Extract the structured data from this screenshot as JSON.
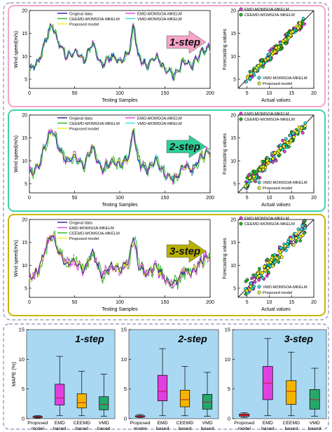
{
  "colors": {
    "original": "#1f1f9e",
    "emd": "#e040e0",
    "ceemd": "#26b826",
    "vmd": "#33e0e0",
    "proposed": "#f0f020",
    "frame_step1": "#f4a6c8",
    "frame_step2": "#3fd4a6",
    "frame_step3": "#c8b400",
    "arrow_step1": "#f5a3c7",
    "arrow_step2": "#2ecf9a",
    "arrow_step3": "#b8b000",
    "box_bg": "#a9d8f2",
    "outer_dash": "#8c8cb4"
  },
  "panels": [
    {
      "step_label": "1-step",
      "series_legend": [
        "Original data",
        "EMD-MOMSOA-MKELM",
        "CEEMD-MOMSOA-MKELM",
        "VMD-MOMSOA-MKELM",
        "Proposed model"
      ],
      "scatter_legend_top": [
        "EMD-MOMSOA-MKELM",
        "CEEMD-MOMSOA-MKELM"
      ],
      "scatter_legend_bottom": [
        "VMD-MOMSOA-MKELM",
        "Proposed model"
      ]
    },
    {
      "step_label": "2-step",
      "series_legend": [
        "Original data",
        "EMD-MOMSOA-MKELM",
        "CEEMD-MOMSOA-MKELM",
        "VMD-MOMSOA-MKELM",
        "Proposed model"
      ],
      "scatter_legend_top": [
        "EMD-MOMSOA-MKELM",
        "CEEMD-MOMSOA-MKELM"
      ],
      "scatter_legend_bottom": [
        "VMD-MOMSOA-MKELM",
        "Proposed model"
      ]
    },
    {
      "step_label": "3-step",
      "series_legend": [
        "Original data",
        "EMD-MOMSOA-MKELM",
        "CEEMD-MOMSOA-MKELM",
        "Proposed model"
      ],
      "scatter_legend_top": [
        "EMD-MOMSOA-MKELM",
        "CEEMD-MOMSOA-MKELM"
      ],
      "scatter_legend_bottom": [
        "VMD-MOMSOA-MKELM",
        "Proposed model"
      ]
    }
  ],
  "chart_data": [
    {
      "type": "line",
      "step": "1-step",
      "xlabel": "Testing Samples",
      "ylabel": "Wind speed(m/s)",
      "xlim": [
        0,
        200
      ],
      "ylim": [
        3,
        20
      ],
      "xticks": [
        0,
        50,
        100,
        150,
        200
      ],
      "yticks": [
        5,
        10,
        15,
        20
      ],
      "x": [
        0,
        10,
        20,
        25,
        30,
        40,
        50,
        60,
        70,
        75,
        80,
        90,
        100,
        110,
        115,
        120,
        130,
        140,
        150,
        160,
        165,
        170,
        180,
        190,
        200
      ],
      "series": [
        {
          "name": "Original data",
          "values": [
            7,
            9,
            15,
            17,
            14,
            10,
            11,
            9,
            13,
            10,
            8,
            10,
            9,
            11,
            17,
            10,
            8,
            10,
            7,
            6,
            7,
            9,
            8,
            11,
            12
          ]
        }
      ]
    },
    {
      "type": "scatter",
      "step": "1-step",
      "xlabel": "Actual values",
      "ylabel": "Forecasting values",
      "xlim": [
        3,
        20
      ],
      "ylim": [
        3,
        20
      ],
      "xticks": [
        5,
        10,
        15,
        20
      ],
      "yticks": [
        5,
        10,
        15,
        20
      ]
    },
    {
      "type": "line",
      "step": "2-step",
      "xlabel": "Testing Samples",
      "ylabel": "Wind speed(m/s)",
      "xlim": [
        0,
        200
      ],
      "ylim": [
        3,
        20
      ],
      "xticks": [
        0,
        50,
        100,
        150,
        200
      ],
      "yticks": [
        5,
        10,
        15,
        20
      ],
      "x": [
        0,
        10,
        20,
        25,
        30,
        40,
        50,
        60,
        70,
        75,
        80,
        90,
        100,
        110,
        115,
        120,
        130,
        140,
        150,
        160,
        165,
        170,
        180,
        190,
        200
      ],
      "series": [
        {
          "name": "Original data",
          "values": [
            7,
            9,
            15,
            17,
            14,
            10,
            11,
            9,
            13,
            10,
            8,
            10,
            9,
            11,
            17,
            10,
            8,
            10,
            7,
            6,
            7,
            9,
            8,
            11,
            12
          ]
        }
      ]
    },
    {
      "type": "scatter",
      "step": "2-step",
      "xlabel": "Actual values",
      "ylabel": "Forecasting values",
      "xlim": [
        3,
        20
      ],
      "ylim": [
        3,
        20
      ],
      "xticks": [
        5,
        10,
        15,
        20
      ],
      "yticks": [
        5,
        10,
        15,
        20
      ]
    },
    {
      "type": "line",
      "step": "3-step",
      "xlabel": "Testing Samples",
      "ylabel": "Wind speed(m/s)",
      "xlim": [
        0,
        200
      ],
      "ylim": [
        3,
        20
      ],
      "xticks": [
        0,
        50,
        100,
        150,
        200
      ],
      "yticks": [
        5,
        10,
        15,
        20
      ],
      "x": [
        0,
        10,
        20,
        25,
        30,
        40,
        50,
        60,
        70,
        75,
        80,
        90,
        100,
        110,
        115,
        120,
        130,
        140,
        150,
        160,
        165,
        170,
        180,
        190,
        200
      ],
      "series": [
        {
          "name": "Original data",
          "values": [
            7,
            9,
            15,
            17,
            14,
            10,
            11,
            9,
            13,
            10,
            8,
            10,
            9,
            11,
            17,
            10,
            8,
            10,
            7,
            6,
            7,
            9,
            8,
            11,
            12
          ]
        }
      ]
    },
    {
      "type": "scatter",
      "step": "3-step",
      "xlabel": "Actual values",
      "ylabel": "Forecasting values",
      "xlim": [
        3,
        20
      ],
      "ylim": [
        3,
        20
      ],
      "xticks": [
        5,
        10,
        15,
        20
      ],
      "yticks": [
        5,
        10,
        15,
        20
      ]
    },
    {
      "type": "box",
      "step": "1-step",
      "ylabel": "MAPE (%)",
      "ylim": [
        0,
        15
      ],
      "yticks": [
        0,
        5,
        10,
        15
      ],
      "categories": [
        "Proposed model",
        "EMD based",
        "CEEMD based",
        "VMD based"
      ],
      "boxes": [
        {
          "min": 0.1,
          "q1": 0.2,
          "median": 0.3,
          "q3": 0.4,
          "max": 0.5,
          "color": "#e0303a"
        },
        {
          "min": 0.5,
          "q1": 2.3,
          "median": 3.5,
          "q3": 5.8,
          "max": 10.5,
          "color": "#e040e0"
        },
        {
          "min": 0.5,
          "q1": 1.8,
          "median": 2.7,
          "q3": 4.2,
          "max": 8.0,
          "color": "#f5b400"
        },
        {
          "min": 0.4,
          "q1": 1.5,
          "median": 2.4,
          "q3": 3.7,
          "max": 7.5,
          "color": "#26a86a"
        }
      ]
    },
    {
      "type": "box",
      "step": "2-step",
      "ylabel": "MAPE (%)",
      "ylim": [
        0,
        15
      ],
      "yticks": [
        0,
        5,
        10,
        15
      ],
      "categories": [
        "Proposed model",
        "EMD based",
        "CEEMD based",
        "VMD based"
      ],
      "boxes": [
        {
          "min": 0.2,
          "q1": 0.3,
          "median": 0.4,
          "q3": 0.5,
          "max": 0.7,
          "color": "#e0303a"
        },
        {
          "min": 0.5,
          "q1": 3.0,
          "median": 4.6,
          "q3": 7.3,
          "max": 11.8,
          "color": "#e040e0"
        },
        {
          "min": 0.5,
          "q1": 2.0,
          "median": 3.2,
          "q3": 4.8,
          "max": 8.8,
          "color": "#f5b400"
        },
        {
          "min": 0.4,
          "q1": 1.6,
          "median": 2.8,
          "q3": 4.1,
          "max": 7.8,
          "color": "#26a86a"
        }
      ]
    },
    {
      "type": "box",
      "step": "3-step",
      "ylabel": "MAPE (%)",
      "ylim": [
        0,
        15
      ],
      "yticks": [
        0,
        5,
        10,
        15
      ],
      "categories": [
        "Proposed model",
        "EMD based",
        "CEEMD based",
        "VMD based"
      ],
      "boxes": [
        {
          "min": 0.2,
          "q1": 0.4,
          "median": 0.6,
          "q3": 0.8,
          "max": 1.0,
          "color": "#e0303a"
        },
        {
          "min": 0.5,
          "q1": 3.2,
          "median": 6.0,
          "q3": 8.8,
          "max": 13.5,
          "color": "#e040e0"
        },
        {
          "min": 0.5,
          "q1": 2.4,
          "median": 4.6,
          "q3": 6.4,
          "max": 11.2,
          "color": "#f5b400"
        },
        {
          "min": 0.4,
          "q1": 1.6,
          "median": 3.2,
          "q3": 4.9,
          "max": 8.5,
          "color": "#26a86a"
        }
      ]
    }
  ],
  "box_panels": [
    {
      "step_label": "1-step",
      "ylabel": "MAPE (%)",
      "categories": [
        "Proposed model",
        "EMD based",
        "CEEMD based",
        "VMD based"
      ]
    },
    {
      "step_label": "2-step",
      "ylabel": "",
      "categories": [
        "Proposed model",
        "EMD based",
        "CEEMD based",
        "VMD based"
      ]
    },
    {
      "step_label": "3-step",
      "ylabel": "",
      "categories": [
        "Proposed model",
        "EMD based",
        "CEEMD based",
        "VMD based"
      ]
    }
  ]
}
